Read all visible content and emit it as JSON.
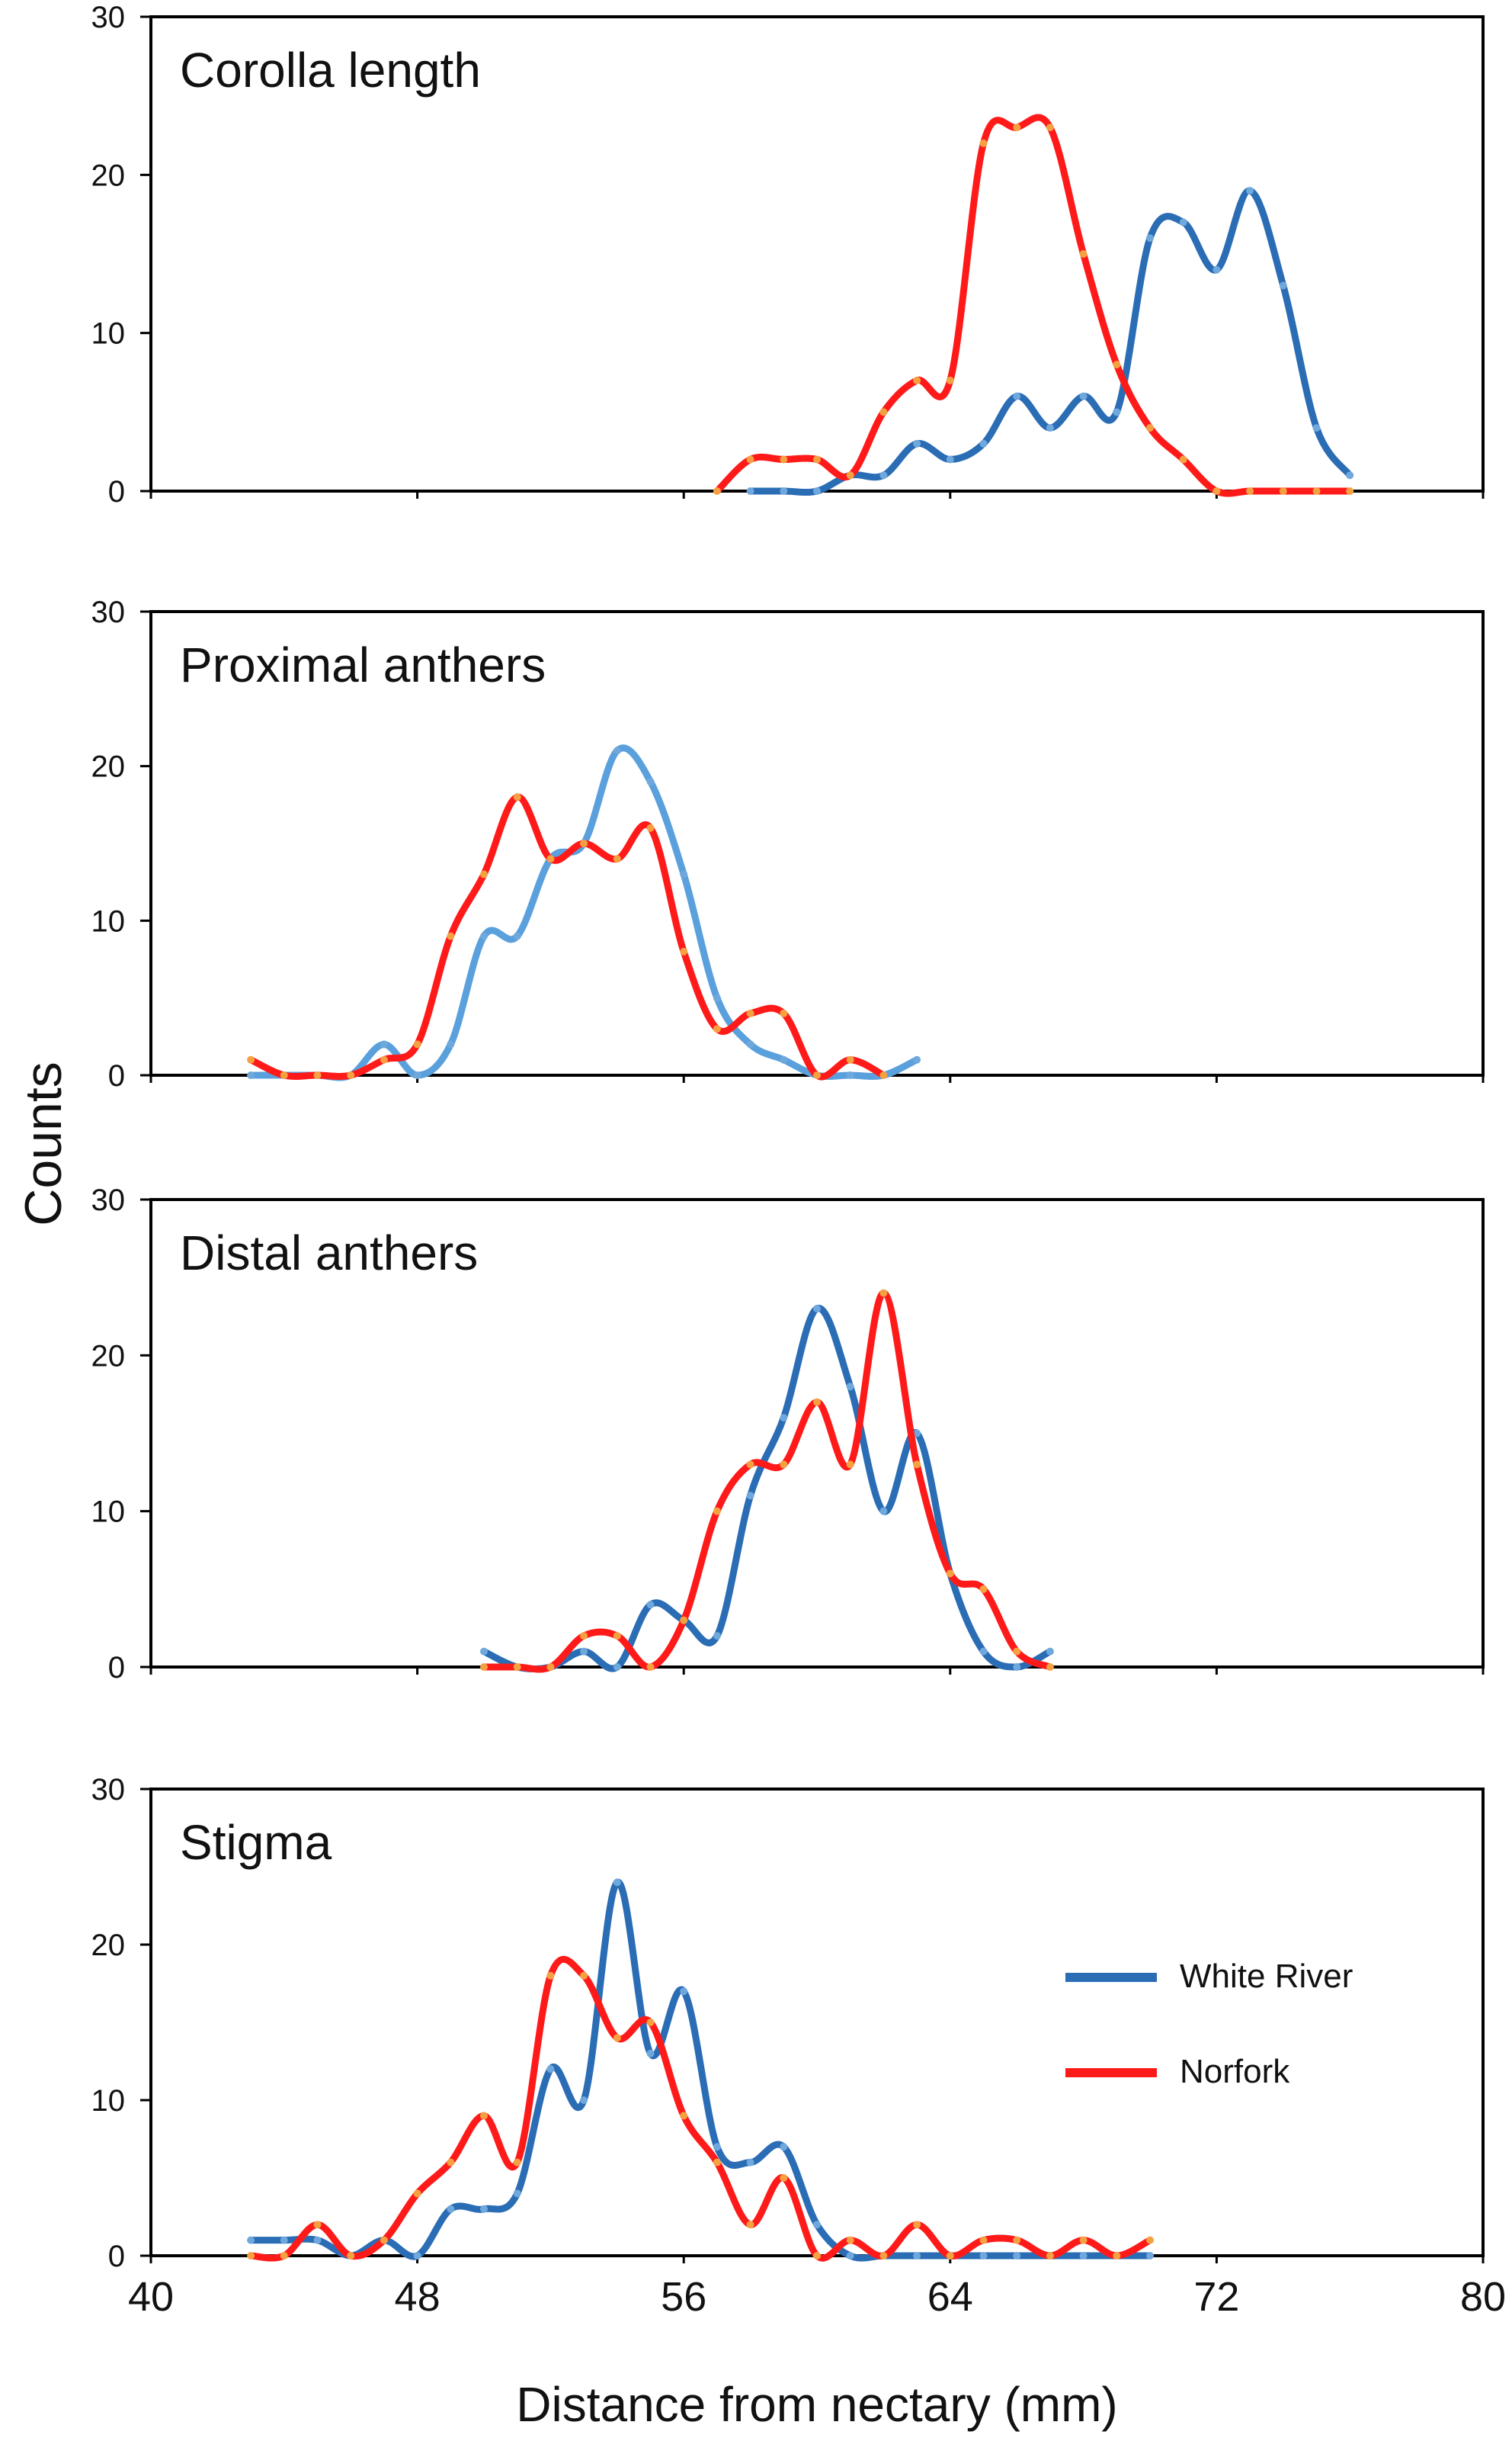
{
  "figure": {
    "ylabel": "Counts",
    "xlabel": "Distance from nectary (mm)",
    "x_ticks": [
      "40",
      "48",
      "56",
      "64",
      "72",
      "80"
    ],
    "y_ticks": [
      "0",
      "10",
      "20",
      "30"
    ],
    "legend": [
      {
        "label": "White River",
        "color": "#2a6db5"
      },
      {
        "label": "Norfork",
        "color": "#ff1a1a"
      }
    ]
  },
  "chart_data": [
    {
      "type": "line",
      "title": "Corolla length",
      "xlim": [
        40,
        80
      ],
      "ylim": [
        0,
        30
      ],
      "grid": false,
      "series": [
        {
          "name": "White River",
          "color": "#2a6db5",
          "x": [
            58,
            59,
            60,
            61,
            62,
            63,
            64,
            65,
            66,
            67,
            68,
            69,
            70,
            71,
            72,
            73,
            74,
            75,
            76
          ],
          "y": [
            0,
            0,
            0,
            1,
            1,
            3,
            2,
            3,
            6,
            4,
            6,
            5,
            16,
            17,
            14,
            19,
            13,
            4,
            1
          ]
        },
        {
          "name": "Norfork",
          "color": "#ff1a1a",
          "x": [
            57,
            58,
            59,
            60,
            61,
            62,
            63,
            64,
            65,
            66,
            67,
            68,
            69,
            70,
            71,
            72,
            73,
            74,
            75,
            76
          ],
          "y": [
            0,
            2,
            2,
            2,
            1,
            5,
            7,
            7,
            22,
            23,
            23,
            15,
            8,
            4,
            2,
            0,
            0,
            0,
            0,
            0
          ]
        }
      ]
    },
    {
      "type": "line",
      "title": "Proximal anthers",
      "xlim": [
        40,
        80
      ],
      "ylim": [
        0,
        30
      ],
      "grid": false,
      "series": [
        {
          "name": "White River",
          "color": "#5aa0dc",
          "x": [
            43,
            44,
            45,
            46,
            47,
            48,
            49,
            50,
            51,
            52,
            53,
            54,
            55,
            56,
            57,
            58,
            59,
            60,
            61,
            62,
            63
          ],
          "y": [
            0,
            0,
            0,
            0,
            2,
            0,
            2,
            9,
            9,
            14,
            15,
            21,
            19,
            13,
            5,
            2,
            1,
            0,
            0,
            0,
            1
          ]
        },
        {
          "name": "Norfork",
          "color": "#ff1a1a",
          "x": [
            43,
            44,
            45,
            46,
            47,
            48,
            49,
            50,
            51,
            52,
            53,
            54,
            55,
            56,
            57,
            58,
            59,
            60,
            61,
            62
          ],
          "y": [
            1,
            0,
            0,
            0,
            1,
            2,
            9,
            13,
            18,
            14,
            15,
            14,
            16,
            8,
            3,
            4,
            4,
            0,
            1,
            0
          ]
        }
      ]
    },
    {
      "type": "line",
      "title": "Distal anthers",
      "xlim": [
        40,
        80
      ],
      "ylim": [
        0,
        30
      ],
      "grid": false,
      "series": [
        {
          "name": "White River",
          "color": "#2a6db5",
          "x": [
            50,
            51,
            52,
            53,
            54,
            55,
            56,
            57,
            58,
            59,
            60,
            61,
            62,
            63,
            64,
            65,
            66,
            67
          ],
          "y": [
            1,
            0,
            0,
            1,
            0,
            4,
            3,
            2,
            11,
            16,
            23,
            18,
            10,
            15,
            6,
            1,
            0,
            1
          ]
        },
        {
          "name": "Norfork",
          "color": "#ff1a1a",
          "x": [
            50,
            51,
            52,
            53,
            54,
            55,
            56,
            57,
            58,
            59,
            60,
            61,
            62,
            63,
            64,
            65,
            66,
            67
          ],
          "y": [
            0,
            0,
            0,
            2,
            2,
            0,
            3,
            10,
            13,
            13,
            17,
            13,
            24,
            13,
            6,
            5,
            1,
            0
          ]
        }
      ]
    },
    {
      "type": "line",
      "title": "Stigma",
      "xlim": [
        40,
        80
      ],
      "ylim": [
        0,
        30
      ],
      "grid": false,
      "legend_position": "right",
      "series": [
        {
          "name": "White River",
          "color": "#2a6db5",
          "x": [
            43,
            44,
            45,
            46,
            47,
            48,
            49,
            50,
            51,
            52,
            53,
            54,
            55,
            56,
            57,
            58,
            59,
            60,
            61,
            62,
            63,
            64,
            65,
            66,
            67,
            68,
            69,
            70
          ],
          "y": [
            1,
            1,
            1,
            0,
            1,
            0,
            3,
            3,
            4,
            12,
            10,
            24,
            13,
            17,
            7,
            6,
            7,
            2,
            0,
            0,
            0,
            0,
            0,
            0,
            0,
            0,
            0,
            0
          ]
        },
        {
          "name": "Norfork",
          "color": "#ff1a1a",
          "x": [
            43,
            44,
            45,
            46,
            47,
            48,
            49,
            50,
            51,
            52,
            53,
            54,
            55,
            56,
            57,
            58,
            59,
            60,
            61,
            62,
            63,
            64,
            65,
            66,
            67,
            68,
            69,
            70
          ],
          "y": [
            0,
            0,
            2,
            0,
            1,
            4,
            6,
            9,
            6,
            18,
            18,
            14,
            15,
            9,
            6,
            2,
            5,
            0,
            1,
            0,
            2,
            0,
            1,
            1,
            0,
            1,
            0,
            1
          ]
        }
      ]
    }
  ]
}
